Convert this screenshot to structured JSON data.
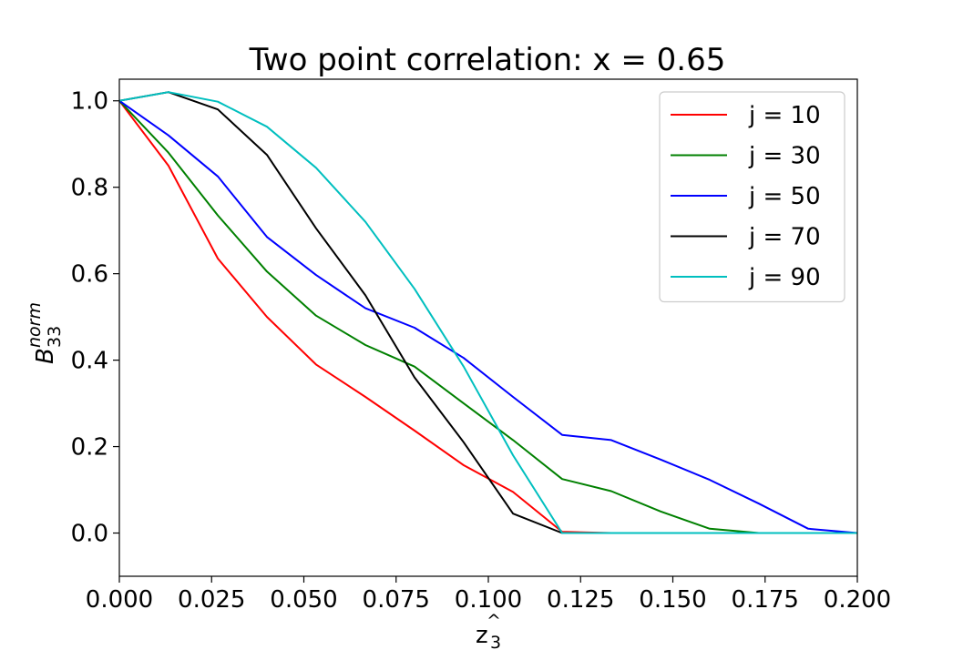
{
  "chart_data": {
    "type": "line",
    "title": "Two point correlation: x = 0.65",
    "xlabel": {
      "base": "z",
      "sub": "3",
      "hat": "^"
    },
    "ylabel": {
      "base": "B",
      "sub": "33",
      "sup": "norm"
    },
    "xlim": [
      0.0,
      0.2
    ],
    "ylim": [
      -0.1,
      1.05
    ],
    "xticks": [
      "0.000",
      "0.025",
      "0.050",
      "0.075",
      "0.100",
      "0.125",
      "0.150",
      "0.175",
      "0.200"
    ],
    "xtick_values": [
      0.0,
      0.025,
      0.05,
      0.075,
      0.1,
      0.125,
      0.15,
      0.175,
      0.2
    ],
    "yticks": [
      "0.0",
      "0.2",
      "0.4",
      "0.6",
      "0.8",
      "1.0"
    ],
    "ytick_values": [
      0.0,
      0.2,
      0.4,
      0.6,
      0.8,
      1.0
    ],
    "grid": false,
    "legend_position": "top-right",
    "x": [
      0.0,
      0.0133,
      0.0267,
      0.04,
      0.0533,
      0.0667,
      0.08,
      0.0933,
      0.1067,
      0.12,
      0.1333,
      0.1467,
      0.16,
      0.1733,
      0.1867,
      0.2
    ],
    "series": [
      {
        "name": "j = 10",
        "color": "#ff0000",
        "values": [
          1.0,
          0.85,
          0.635,
          0.5,
          0.39,
          0.315,
          0.237,
          0.157,
          0.095,
          0.003,
          0.0,
          0.0,
          0.0,
          0.0,
          0.0,
          0.0
        ]
      },
      {
        "name": "j = 30",
        "color": "#008000",
        "values": [
          1.0,
          0.88,
          0.735,
          0.605,
          0.503,
          0.435,
          0.385,
          0.3,
          0.215,
          0.125,
          0.097,
          0.05,
          0.01,
          0.0,
          0.0,
          0.0
        ]
      },
      {
        "name": "j = 50",
        "color": "#0000ff",
        "values": [
          1.0,
          0.92,
          0.825,
          0.685,
          0.597,
          0.52,
          0.475,
          0.405,
          0.315,
          0.227,
          0.215,
          0.17,
          0.123,
          0.068,
          0.01,
          0.0
        ]
      },
      {
        "name": "j = 70",
        "color": "#000000",
        "values": [
          1.0,
          1.02,
          0.98,
          0.875,
          0.705,
          0.55,
          0.36,
          0.21,
          0.045,
          0.0,
          0.0,
          0.0,
          0.0,
          0.0,
          0.0,
          0.0
        ]
      },
      {
        "name": "j = 90",
        "color": "#00bfbf",
        "values": [
          1.0,
          1.02,
          0.998,
          0.94,
          0.845,
          0.72,
          0.565,
          0.385,
          0.18,
          0.0,
          0.0,
          0.0,
          0.0,
          0.0,
          0.0,
          0.0
        ]
      }
    ]
  }
}
